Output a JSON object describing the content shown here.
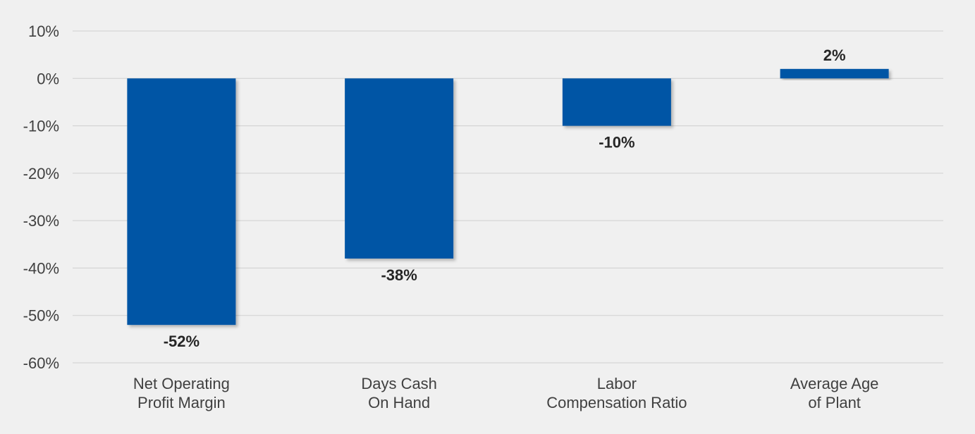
{
  "chart_data": {
    "type": "bar",
    "categories": [
      [
        "Net Operating",
        "Profit Margin"
      ],
      [
        "Days Cash",
        "On Hand"
      ],
      [
        "Labor",
        "Compensation Ratio"
      ],
      [
        "Average Age",
        "of Plant"
      ]
    ],
    "values": [
      -52,
      -38,
      -10,
      2
    ],
    "data_labels": [
      "-52%",
      "-38%",
      "-10%",
      "2%"
    ],
    "ylim": [
      -60,
      10
    ],
    "yticks": [
      10,
      0,
      -10,
      -20,
      -30,
      -40,
      -50,
      -60
    ],
    "ytick_labels": [
      "10%",
      "0%",
      "-10%",
      "-20%",
      "-30%",
      "-40%",
      "-50%",
      "-60%"
    ],
    "grid": true,
    "legend": "none",
    "colors": {
      "bar": "#0055a5",
      "background": "#f0f0f0",
      "grid": "#cfcfcf",
      "text": "#404040"
    }
  }
}
